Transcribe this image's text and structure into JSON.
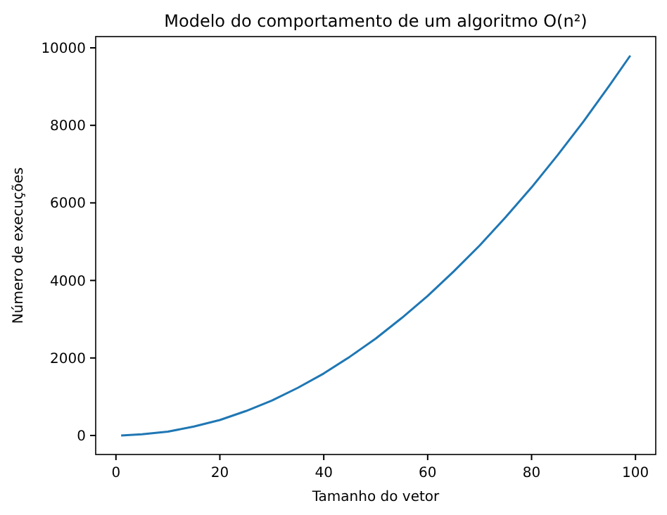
{
  "chart_data": {
    "type": "line",
    "title": "Modelo do comportamento de um algoritmo O(n²)",
    "xlabel": "Tamanho do vetor",
    "ylabel": "Número de execuções",
    "x": [
      1,
      5,
      10,
      15,
      20,
      25,
      30,
      35,
      40,
      45,
      50,
      55,
      60,
      65,
      70,
      75,
      80,
      85,
      90,
      95,
      99
    ],
    "series": [
      {
        "color": "#1f77b4",
        "values": [
          0,
          30,
          100,
          230,
          400,
          630,
          900,
          1230,
          1600,
          2030,
          2500,
          3030,
          3600,
          4230,
          4900,
          5630,
          6400,
          7230,
          8100,
          9030,
          9800
        ]
      }
    ],
    "xlim": [
      -3.9,
      103.9
    ],
    "ylim": [
      -490,
      10290
    ],
    "xticks": [
      0,
      20,
      40,
      60,
      80,
      100
    ],
    "yticks": [
      0,
      2000,
      4000,
      6000,
      8000,
      10000
    ],
    "grid": false
  }
}
